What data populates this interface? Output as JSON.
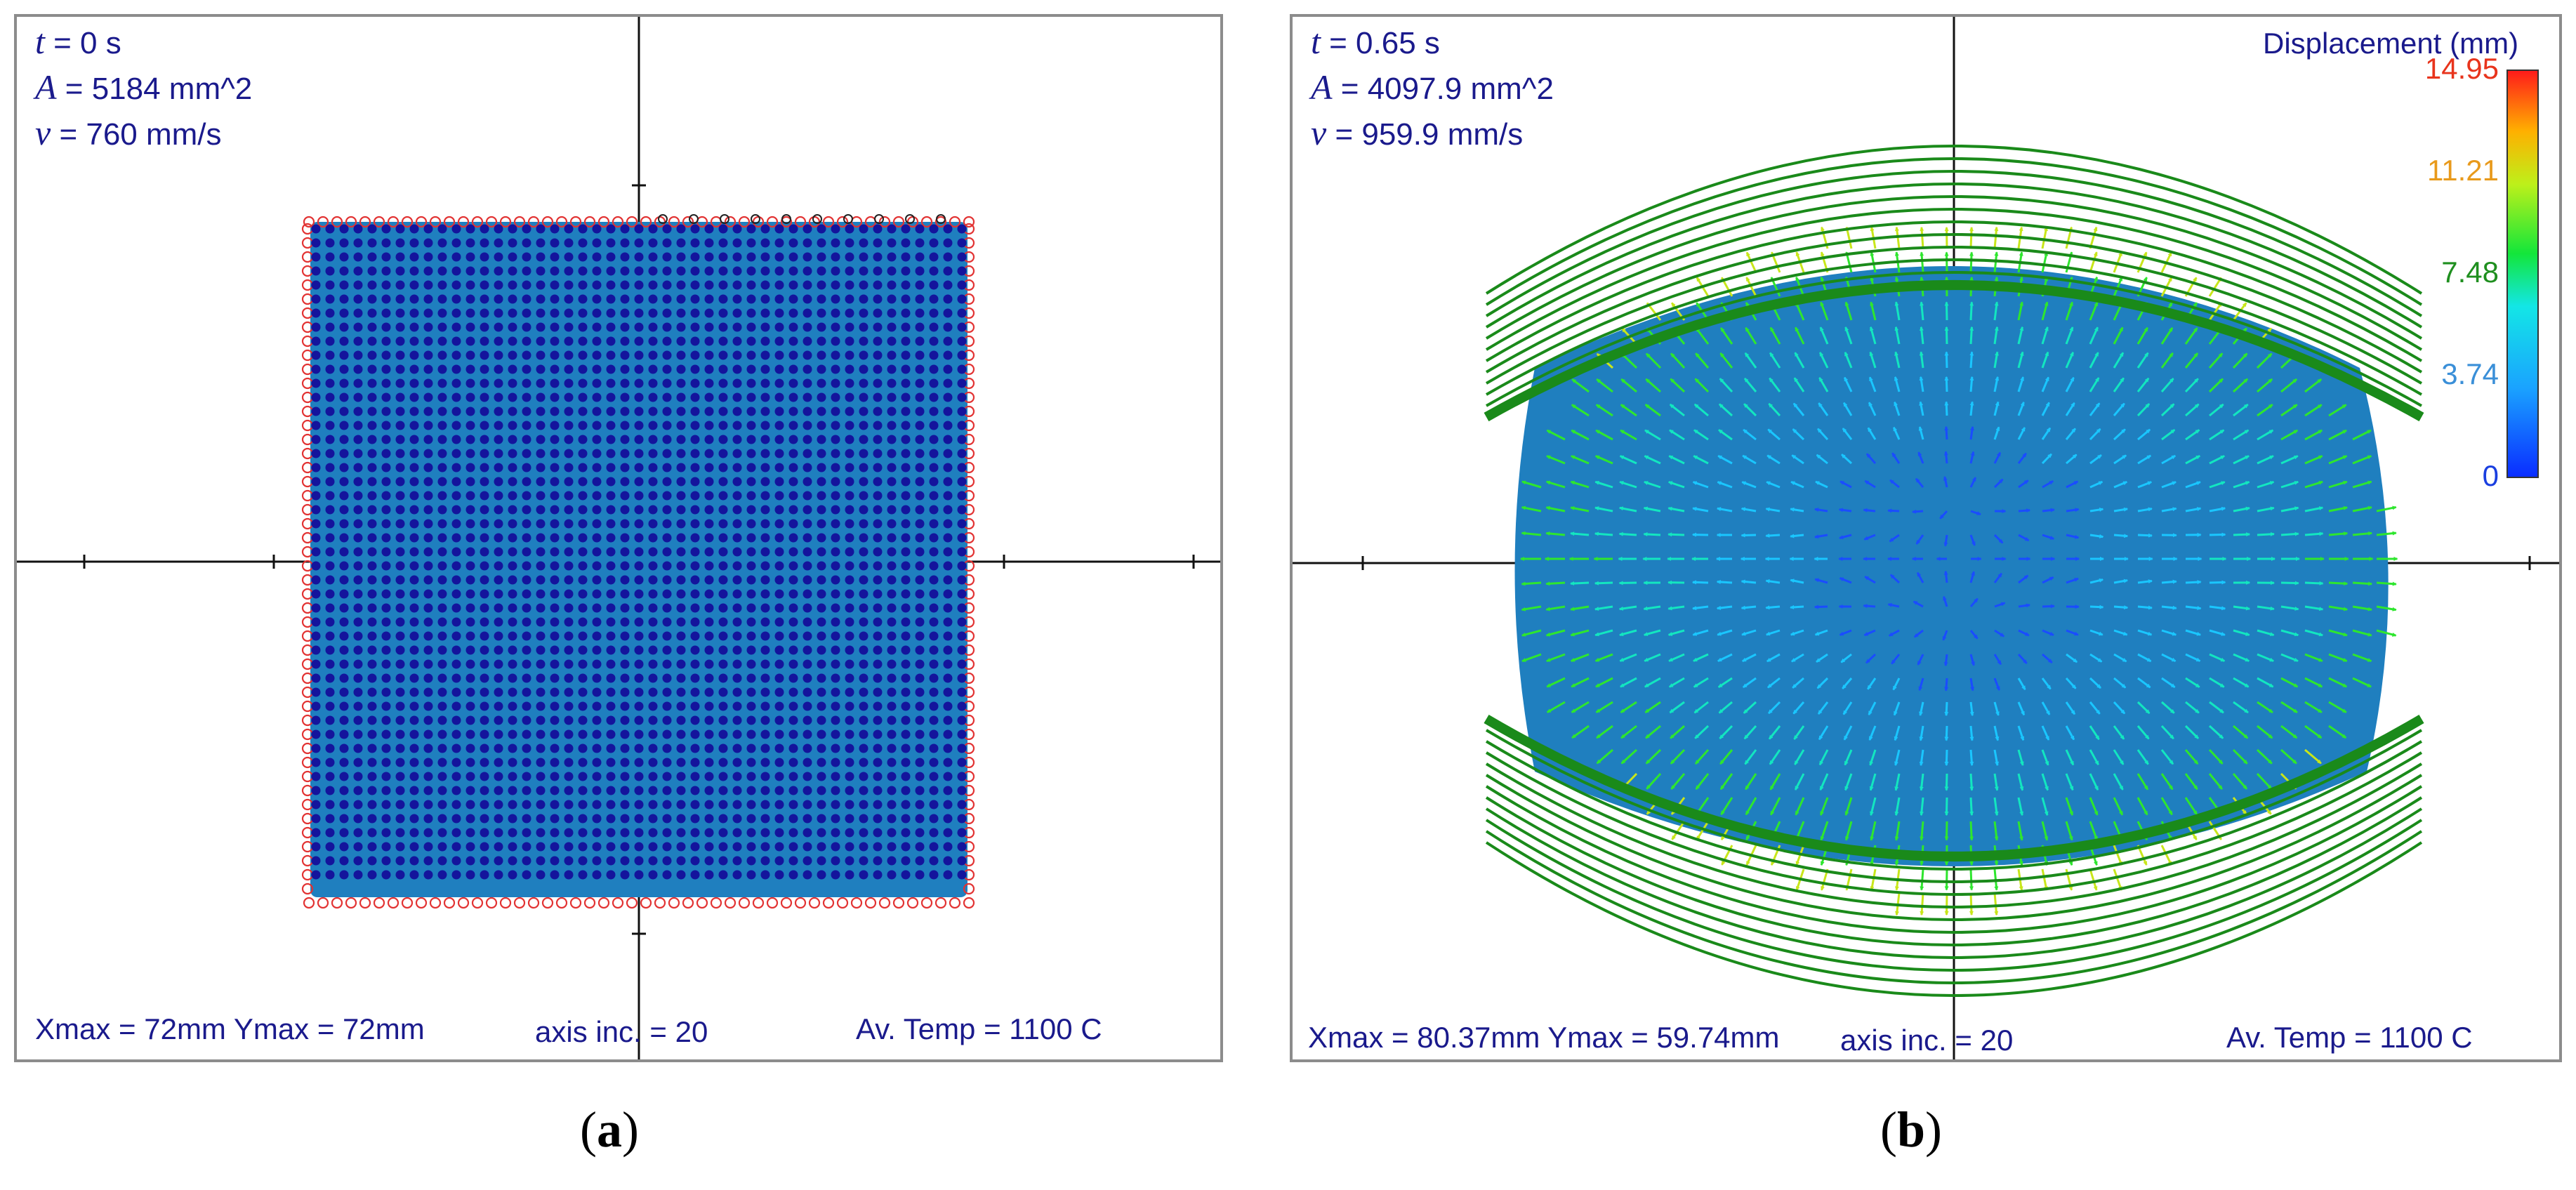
{
  "panel_a": {
    "label": "a",
    "time": {
      "symbol": "t",
      "value": "= 0 s"
    },
    "area": {
      "symbol": "A",
      "value": "= 5184 mm^2"
    },
    "velocity": {
      "symbol": "v",
      "value": "= 760 mm/s"
    },
    "footer": {
      "xmax_ymax": "Xmax = 72mm  Ymax = 72mm",
      "axis_inc": "axis inc. = 20",
      "temp": "Av. Temp = 1100 C"
    }
  },
  "panel_b": {
    "label": "b",
    "time": {
      "symbol": "t",
      "value": "= 0.65 s"
    },
    "area": {
      "symbol": "A",
      "value": "= 4097.9 mm^2"
    },
    "velocity": {
      "symbol": "v",
      "value": "= 959.9 mm/s"
    },
    "footer": {
      "xmax_ymax": "Xmax = 80.37mm  Ymax = 59.74mm",
      "axis_inc": "axis inc. = 20",
      "temp": "Av. Temp = 1100 C"
    },
    "legend": {
      "title": "Displacement (mm)",
      "ticks": [
        {
          "label": "14.95",
          "color": "#e8341c"
        },
        {
          "label": "11.21",
          "color": "#e89a1c"
        },
        {
          "label": "7.48",
          "color": "#1f8f1f"
        },
        {
          "label": "3.74",
          "color": "#3a8fd8"
        },
        {
          "label": "0",
          "color": "#1a3fe0"
        }
      ]
    }
  },
  "colors": {
    "text": "#1a1a8c",
    "fill": "#1f7fbf",
    "node": "#14149c",
    "boundary": "#e23333",
    "die": "#1a8a1a"
  }
}
